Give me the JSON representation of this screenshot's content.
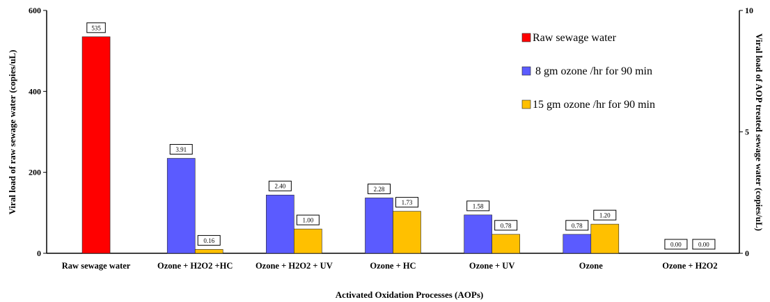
{
  "chart_data": {
    "type": "bar",
    "categories": [
      "Raw sewage water",
      "Ozone + H2O2 +HC",
      "Ozone + H2O2 + UV",
      "Ozone + HC",
      "Ozone + UV",
      "Ozone",
      "Ozone + H2O2"
    ],
    "series": [
      {
        "name": "Raw sewage water",
        "axis": "left",
        "color": "#ff0000",
        "values": [
          535,
          null,
          null,
          null,
          null,
          null,
          null
        ],
        "labels": [
          "535",
          null,
          null,
          null,
          null,
          null,
          null
        ]
      },
      {
        "name": " 8 gm ozone /hr for 90 min",
        "axis": "right",
        "color": "#5b5bff",
        "values": [
          null,
          3.91,
          2.4,
          2.28,
          1.58,
          0.78,
          0.0
        ],
        "labels": [
          null,
          "3.91",
          "2.40",
          "2.28",
          "1.58",
          "0.78",
          "0.00"
        ]
      },
      {
        "name": "15 gm ozone /hr for 90 min",
        "axis": "right",
        "color": "#ffc000",
        "values": [
          null,
          0.16,
          1.0,
          1.73,
          0.78,
          1.2,
          0.0
        ],
        "labels": [
          null,
          "0.16",
          "1.00",
          "1.73",
          "0.78",
          "1.20",
          "0.00"
        ]
      }
    ],
    "xlabel": "Activated Oxidation Processes (AOPs)",
    "ylabel_left": "Viral load of raw sewage water (copies/uL)",
    "ylabel_right": "Viral load of AOP treated sewage water (copies/uL)",
    "ylim_left": [
      0,
      600
    ],
    "yticks_left": [
      "0",
      "200",
      "400",
      "600"
    ],
    "ylim_right": [
      0,
      10
    ],
    "yticks_right": [
      "0",
      "5",
      "10"
    ],
    "grid": false,
    "legend_position": "top-right"
  }
}
